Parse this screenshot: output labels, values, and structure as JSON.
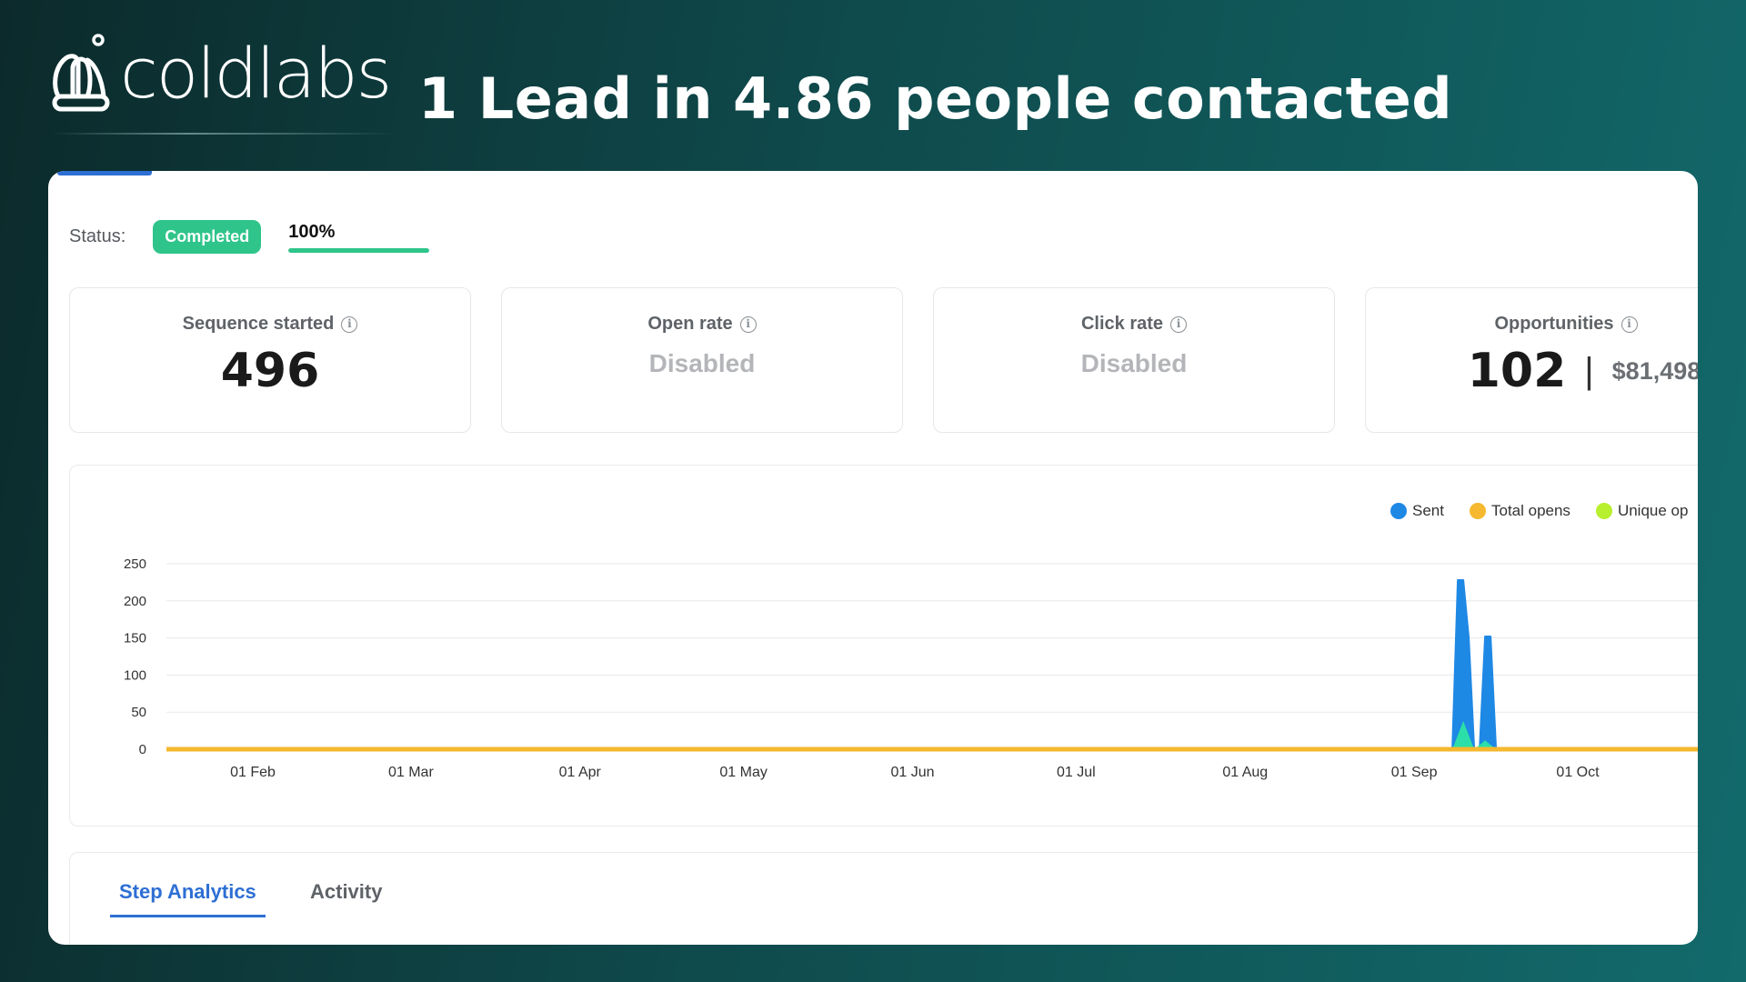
{
  "brand": {
    "name": "coldlabs",
    "logo_icon": "coldlabs-logo-icon"
  },
  "headline": "1 Lead in 4.86 people contacted",
  "status": {
    "label": "Status:",
    "badge": "Completed",
    "progress_text": "100%",
    "progress_value": 100
  },
  "cards": [
    {
      "title": "Sequence started",
      "value": "496"
    },
    {
      "title": "Open rate",
      "value": "Disabled"
    },
    {
      "title": "Click rate",
      "value": "Disabled"
    },
    {
      "title": "Opportunities",
      "value": "102",
      "separator": "|",
      "amount": "$81,498"
    }
  ],
  "chart_data": {
    "type": "area",
    "ylim": [
      0,
      250
    ],
    "yticks": [
      "250",
      "200",
      "150",
      "100",
      "50",
      "0"
    ],
    "x_tick_labels": [
      "01 Feb",
      "01 Mar",
      "01 Apr",
      "01 May",
      "01 Jun",
      "01 Jul",
      "01 Aug",
      "01 Sep",
      "01 Oct"
    ],
    "legend": [
      "Sent",
      "Total opens",
      "Unique op"
    ],
    "colors": {
      "sent": "#1e88e5",
      "total_opens": "#f5b82e",
      "unique_opens": "#b8ef2e",
      "replies": "#2ee8a0"
    },
    "series": [
      {
        "name": "Sent",
        "points": [
          [
            "2024-09-08",
            0
          ],
          [
            "2024-09-09",
            228
          ],
          [
            "2024-09-10",
            228
          ],
          [
            "2024-09-11",
            150
          ],
          [
            "2024-09-12",
            0
          ],
          [
            "2024-09-13",
            0
          ],
          [
            "2024-09-14",
            152
          ],
          [
            "2024-09-15",
            152
          ],
          [
            "2024-09-16",
            0
          ]
        ]
      },
      {
        "name": "Total opens",
        "points": [
          [
            "2024-01-16",
            0
          ],
          [
            "2024-10-20",
            0
          ]
        ]
      },
      {
        "name": "Unique op",
        "points": [
          [
            "2024-09-08",
            0
          ],
          [
            "2024-09-10",
            38
          ],
          [
            "2024-09-12",
            0
          ],
          [
            "2024-09-14",
            12
          ],
          [
            "2024-09-16",
            0
          ]
        ]
      }
    ]
  },
  "tabs": [
    {
      "label": "Step Analytics",
      "active": true
    },
    {
      "label": "Activity",
      "active": false
    }
  ]
}
